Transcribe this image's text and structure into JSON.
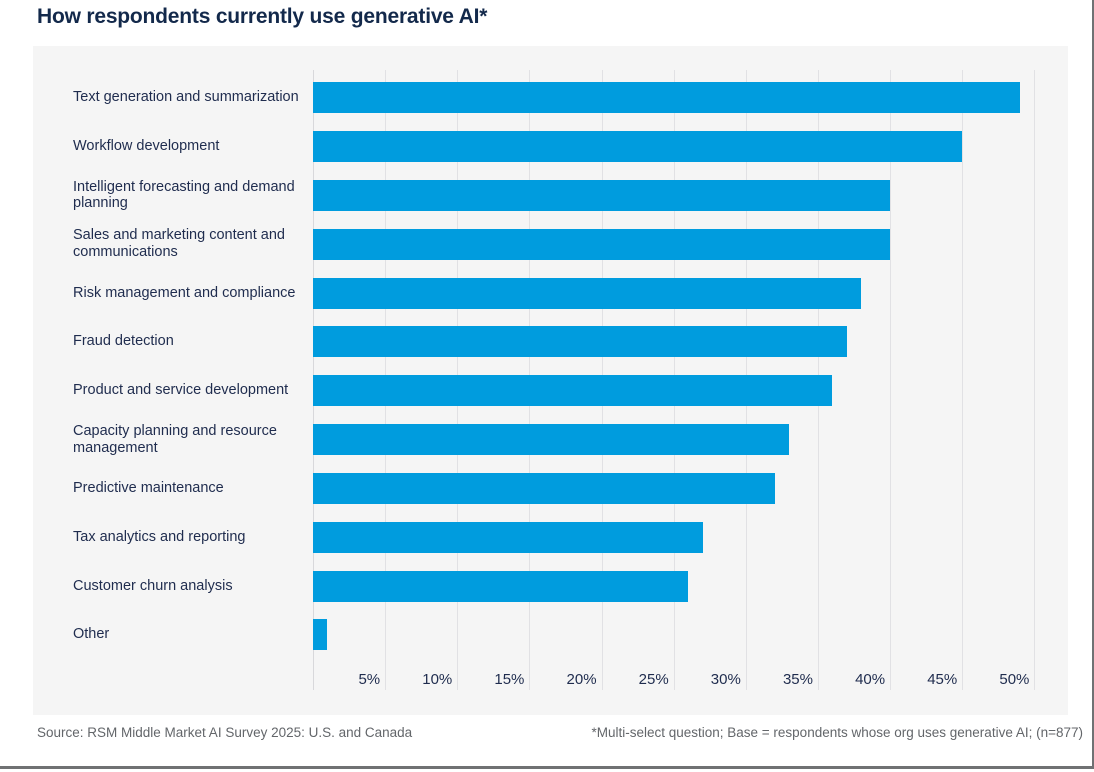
{
  "title": "How respondents currently use generative AI*",
  "footer": {
    "source": "Source: RSM Middle Market AI Survey 2025: U.S. and Canada",
    "note": "*Multi-select question; Base = respondents whose org uses generative AI; (n=877)"
  },
  "colors": {
    "bar": "#009CDE",
    "title_navy": "#13294B",
    "label_navy": "#1F2C4E",
    "panel_gray": "#F5F5F5",
    "gridline_gray": "#E1E1E4",
    "footer_gray": "#63666A",
    "border_gray": "#707173"
  },
  "chart_data": {
    "type": "bar",
    "orientation": "horizontal",
    "title": "How respondents currently use generative AI*",
    "categories": [
      "Text generation and summarization",
      "Workflow development",
      "Intelligent forecasting and demand planning",
      "Sales and marketing content and communications",
      "Risk management and compliance",
      "Fraud detection",
      "Product and service development",
      "Capacity planning and resource management",
      "Predictive maintenance",
      "Tax analytics and reporting",
      "Customer churn analysis",
      "Other"
    ],
    "values": [
      49,
      45,
      40,
      40,
      38,
      37,
      36,
      33,
      32,
      27,
      26,
      1
    ],
    "unit": "%",
    "x_ticks": [
      "5%",
      "10%",
      "15%",
      "20%",
      "25%",
      "30%",
      "35%",
      "40%",
      "45%",
      "50%"
    ],
    "x_tick_interval": 5,
    "xlim": [
      0,
      52.3
    ],
    "xlabel": "",
    "ylabel": "",
    "grid": "vertical",
    "legend": "none"
  }
}
